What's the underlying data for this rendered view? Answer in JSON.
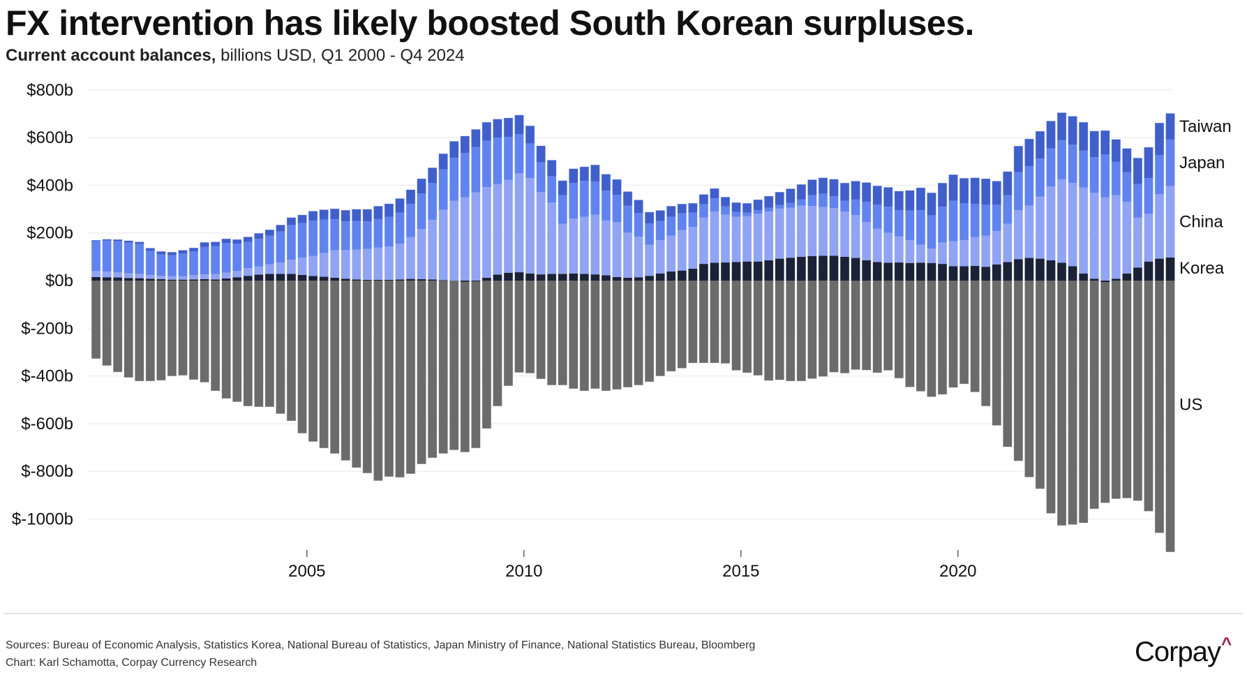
{
  "title": "FX intervention has likely boosted South Korean surpluses.",
  "subtitle_bold": "Current account balances,",
  "subtitle_rest": " billions USD, Q1 2000 - Q4 2024",
  "footer": {
    "sources": "Sources: Bureau of Economic Analysis, Statistics Korea, National Bureau of Statistics, Japan Ministry of Finance, National Statistics Bureau, Bloomberg",
    "credit": "Chart: Karl Schamotta, Corpay Currency Research",
    "logo_text": "Corpay",
    "logo_mark": "^"
  },
  "colors": {
    "US": "#6b6b6b",
    "Korea": "#1a2238",
    "China": "#8fa3f7",
    "Japan": "#6083f3",
    "Taiwan": "#3f5fcf",
    "logo_accent": "#b0173a"
  },
  "chart_data": {
    "type": "bar",
    "stacked": true,
    "title": "FX intervention has likely boosted South Korean surpluses.",
    "subtitle": "Current account balances, billions USD, Q1 2000 - Q4 2024",
    "xlabel": "",
    "ylabel": "",
    "ylim": [
      -1150,
      850
    ],
    "yticks": [
      800,
      600,
      400,
      200,
      0,
      -200,
      -400,
      -600,
      -800,
      -1000
    ],
    "ytick_labels": [
      "$800b",
      "$600b",
      "$400b",
      "$200b",
      "$0b",
      "$-200b",
      "$-400b",
      "$-600b",
      "$-800b",
      "$-1000b"
    ],
    "xticks": [
      {
        "label": "2005",
        "index": 20
      },
      {
        "label": "2010",
        "index": 40
      },
      {
        "label": "2015",
        "index": 60
      },
      {
        "label": "2020",
        "index": 80
      }
    ],
    "grid": true,
    "legend": "direct labels right",
    "start_quarter": "Q1 2000",
    "end_quarter": "Q4 2024",
    "series": [
      {
        "name": "Korea",
        "values": [
          15,
          14,
          13,
          11,
          10,
          8,
          6,
          4,
          4,
          5,
          6,
          5,
          9,
          14,
          20,
          25,
          28,
          28,
          28,
          24,
          19,
          16,
          12,
          8,
          5,
          3,
          3,
          3,
          5,
          7,
          6,
          5,
          2,
          0,
          -5,
          -3,
          12,
          25,
          33,
          35,
          30,
          26,
          28,
          28,
          30,
          28,
          26,
          22,
          15,
          12,
          14,
          20,
          30,
          38,
          42,
          50,
          70,
          75,
          76,
          78,
          80,
          80,
          85,
          92,
          96,
          100,
          103,
          104,
          104,
          100,
          95,
          85,
          78,
          75,
          76,
          74,
          75,
          74,
          70,
          60,
          60,
          62,
          58,
          68,
          78,
          90,
          95,
          92,
          85,
          75,
          60,
          30,
          8,
          -6,
          8,
          30,
          55,
          80,
          92,
          97
        ]
      },
      {
        "name": "China",
        "values": [
          25,
          24,
          22,
          20,
          18,
          16,
          14,
          14,
          14,
          18,
          20,
          22,
          24,
          26,
          32,
          35,
          40,
          48,
          60,
          72,
          85,
          100,
          115,
          120,
          125,
          130,
          135,
          140,
          150,
          175,
          210,
          250,
          295,
          335,
          350,
          370,
          380,
          380,
          390,
          415,
          400,
          345,
          300,
          210,
          230,
          240,
          250,
          230,
          230,
          190,
          170,
          130,
          140,
          150,
          170,
          175,
          195,
          215,
          200,
          190,
          190,
          200,
          205,
          210,
          210,
          215,
          210,
          205,
          200,
          190,
          180,
          160,
          140,
          125,
          110,
          95,
          75,
          60,
          90,
          105,
          110,
          120,
          130,
          140,
          160,
          205,
          220,
          260,
          310,
          350,
          350,
          360,
          360,
          350,
          350,
          300,
          210,
          200,
          270,
          300
        ]
      },
      {
        "name": "Japan",
        "values": [
          125,
          130,
          130,
          128,
          125,
          100,
          90,
          88,
          95,
          100,
          115,
          118,
          125,
          115,
          110,
          115,
          120,
          130,
          145,
          145,
          148,
          140,
          130,
          120,
          120,
          115,
          120,
          125,
          130,
          140,
          150,
          155,
          170,
          180,
          185,
          190,
          195,
          195,
          180,
          165,
          145,
          125,
          110,
          120,
          150,
          150,
          140,
          125,
          115,
          112,
          100,
          90,
          80,
          80,
          70,
          60,
          55,
          55,
          35,
          20,
          15,
          15,
          15,
          15,
          20,
          25,
          45,
          55,
          50,
          45,
          65,
          85,
          100,
          110,
          110,
          125,
          145,
          140,
          150,
          170,
          155,
          140,
          130,
          110,
          120,
          160,
          165,
          160,
          160,
          165,
          160,
          155,
          150,
          180,
          140,
          125,
          140,
          150,
          165,
          195
        ]
      },
      {
        "name": "Taiwan",
        "values": [
          5,
          6,
          8,
          9,
          10,
          13,
          13,
          14,
          15,
          15,
          20,
          18,
          18,
          18,
          22,
          24,
          26,
          28,
          32,
          35,
          40,
          42,
          45,
          48,
          50,
          52,
          55,
          55,
          60,
          60,
          62,
          64,
          66,
          70,
          72,
          75,
          78,
          78,
          80,
          80,
          75,
          70,
          68,
          62,
          60,
          60,
          70,
          70,
          65,
          60,
          55,
          48,
          45,
          45,
          40,
          40,
          42,
          42,
          40,
          40,
          40,
          45,
          50,
          55,
          60,
          64,
          66,
          68,
          72,
          75,
          78,
          82,
          80,
          82,
          80,
          85,
          95,
          95,
          100,
          110,
          105,
          110,
          110,
          100,
          100,
          110,
          115,
          115,
          115,
          115,
          120,
          120,
          110,
          100,
          95,
          100,
          110,
          130,
          135,
          110
        ]
      },
      {
        "name": "US",
        "values": [
          -328,
          -357,
          -384,
          -407,
          -422,
          -422,
          -419,
          -401,
          -398,
          -416,
          -427,
          -463,
          -495,
          -509,
          -527,
          -530,
          -530,
          -559,
          -589,
          -641,
          -676,
          -703,
          -726,
          -755,
          -785,
          -808,
          -840,
          -823,
          -826,
          -811,
          -770,
          -744,
          -726,
          -711,
          -720,
          -703,
          -621,
          -527,
          -442,
          -386,
          -389,
          -413,
          -439,
          -439,
          -454,
          -463,
          -454,
          -463,
          -457,
          -448,
          -439,
          -425,
          -401,
          -381,
          -368,
          -346,
          -346,
          -346,
          -348,
          -377,
          -387,
          -398,
          -420,
          -417,
          -422,
          -422,
          -412,
          -403,
          -385,
          -389,
          -374,
          -376,
          -387,
          -377,
          -410,
          -447,
          -465,
          -488,
          -478,
          -449,
          -434,
          -468,
          -527,
          -608,
          -698,
          -757,
          -825,
          -874,
          -977,
          -1028,
          -1024,
          -1017,
          -958,
          -933,
          -916,
          -913,
          -924,
          -968,
          -1059,
          -1139
        ]
      }
    ],
    "annotations": [
      "Taiwan",
      "Japan",
      "China",
      "Korea",
      "US"
    ]
  }
}
